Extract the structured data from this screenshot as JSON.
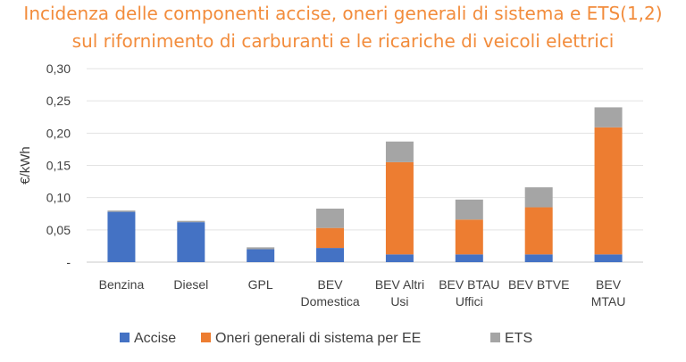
{
  "chart_data": {
    "type": "bar",
    "stacked": true,
    "title_lines": [
      "Incidenza delle componenti accise, oneri generali di sistema e ETS(1,2)",
      "sul rifornimento di carburanti e le ricariche di veicoli elettrici"
    ],
    "ylabel": "€/kWh",
    "xlabel": "",
    "ylim": [
      0,
      0.3
    ],
    "yticks": [
      {
        "value": 0,
        "label": "-"
      },
      {
        "value": 0.05,
        "label": "0,05"
      },
      {
        "value": 0.1,
        "label": "0,10"
      },
      {
        "value": 0.15,
        "label": "0,15"
      },
      {
        "value": 0.2,
        "label": "0,20"
      },
      {
        "value": 0.25,
        "label": "0,25"
      },
      {
        "value": 0.3,
        "label": "0,30"
      }
    ],
    "categories": [
      [
        "Benzina"
      ],
      [
        "Diesel"
      ],
      [
        "GPL"
      ],
      [
        "BEV",
        "Domestica"
      ],
      [
        "BEV Altri",
        "Usi"
      ],
      [
        "BEV BTAU",
        "Uffici"
      ],
      [
        "BEV BTVE"
      ],
      [
        "BEV",
        "MTAU"
      ]
    ],
    "series": [
      {
        "name": "Accise",
        "color": "#4472c4",
        "values": [
          0.078,
          0.062,
          0.02,
          0.022,
          0.012,
          0.012,
          0.012,
          0.012
        ]
      },
      {
        "name": "Oneri generali di sistema per EE",
        "color": "#ed7d31",
        "values": [
          0,
          0,
          0,
          0.031,
          0.143,
          0.054,
          0.073,
          0.197
        ]
      },
      {
        "name": "ETS",
        "color": "#a5a5a5",
        "values": [
          0.002,
          0.002,
          0.003,
          0.03,
          0.032,
          0.031,
          0.031,
          0.031
        ]
      }
    ],
    "grid": true,
    "legend_position": "bottom"
  }
}
